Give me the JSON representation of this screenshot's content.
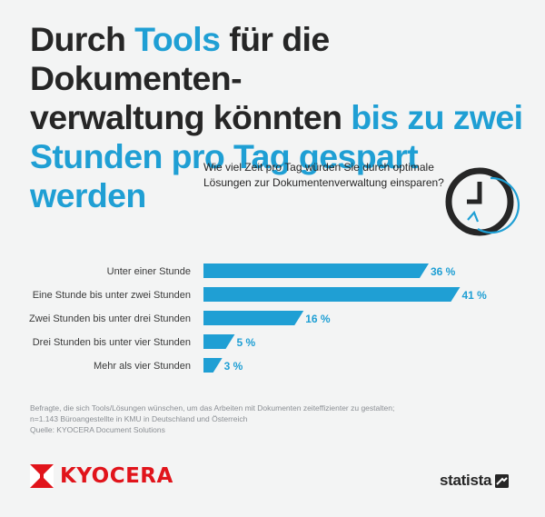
{
  "title": {
    "line1_a": "Durch ",
    "line1_hl": "Tools",
    "line1_b": " für die Dokumenten-",
    "line2_a": "verwaltung könnten ",
    "line2_hl": "bis zu zwei",
    "line3_hl": "Stunden pro Tag gespart werden"
  },
  "question": {
    "line1": "Wie viel Zeit pro Tag würden Sie durch optimale",
    "line2": "Lösungen zur Dokumentenverwaltung einsparen?"
  },
  "icon": "clock-arrow-icon",
  "chart_data": {
    "type": "bar",
    "orientation": "horizontal",
    "categories": [
      "Unter einer Stunde",
      "Eine Stunde bis unter zwei Stunden",
      "Zwei Stunden bis unter drei Stunden",
      "Drei Stunden bis unter vier Stunden",
      "Mehr als vier Stunden"
    ],
    "values": [
      36,
      41,
      16,
      5,
      3
    ],
    "value_labels": [
      "36 %",
      "41 %",
      "16 %",
      "5 %",
      "3 %"
    ],
    "unit": "%",
    "bar_color": "#1f9fd4",
    "grid": false
  },
  "footnote": {
    "line1": "Befragte, die sich Tools/Lösungen wünschen, um das Arbeiten mit Dokumenten zeiteffizienter zu gestalten;",
    "line2": "n=1.143 Büroangestellte in KMU in Deutschland und Österreich",
    "line3": "Quelle: KYOCERA Document Solutions"
  },
  "brand": {
    "kyocera": "KYOCERA",
    "kyocera_color": "#e1141b",
    "statista": "statista"
  },
  "colors": {
    "accent": "#1f9fd4",
    "text": "#262626",
    "background": "#f3f4f4"
  }
}
